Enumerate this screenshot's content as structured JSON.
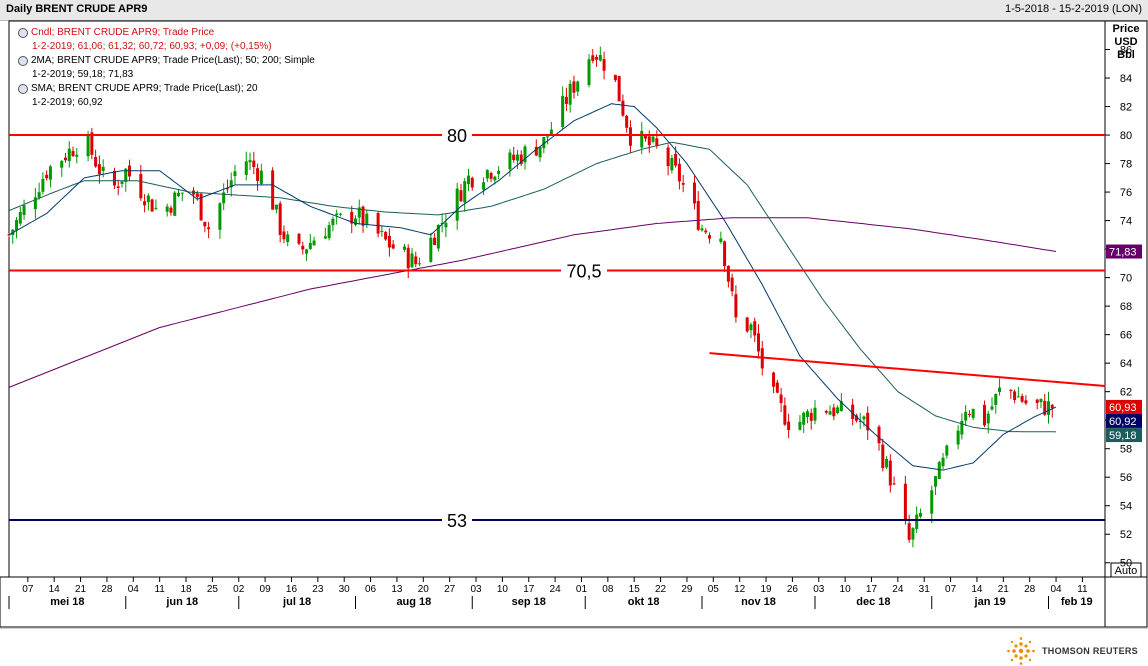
{
  "header": {
    "title": "Daily BRENT CRUDE APR9",
    "date_range": "1-5-2018 - 15-2-2019 (LON)"
  },
  "legend": [
    {
      "label": "Cndl; BRENT CRUDE APR9; Trade Price",
      "values": "1-2-2019; 61,06; 61,32; 60,72; 60,93; +0,09; (+0,15%)",
      "color": "#d01010"
    },
    {
      "label": "2MA; BRENT CRUDE APR9; Trade Price(Last);  50; 200; Simple",
      "values": "1-2-2019; 59,18; 71,83",
      "color": "#000000"
    },
    {
      "label": "SMA; BRENT CRUDE APR9; Trade Price(Last);  20",
      "values": "1-2-2019; 60,92",
      "color": "#000000"
    }
  ],
  "axis_title": [
    "Price",
    "USD",
    "Bbl"
  ],
  "auto_label": "Auto",
  "branding": "THOMSON REUTERS",
  "colors": {
    "up": "#009900",
    "down": "#dd0000",
    "hline_red": "#ff0000",
    "hline_blue": "#00005a",
    "ma20": "#003a6b",
    "ma50": "#1b5c5c",
    "ma200": "#660066"
  },
  "chart_data": {
    "type": "candlestick",
    "ylim": [
      49,
      88
    ],
    "yticks": [
      50,
      52,
      54,
      56,
      58,
      60,
      62,
      64,
      66,
      68,
      70,
      72,
      74,
      76,
      78,
      80,
      82,
      84,
      86
    ],
    "x_day_ticks": [
      {
        "d": 5,
        "label": "07"
      },
      {
        "d": 12,
        "label": "14"
      },
      {
        "d": 19,
        "label": "21"
      },
      {
        "d": 26,
        "label": "28"
      },
      {
        "d": 33,
        "label": "04"
      },
      {
        "d": 40,
        "label": "11"
      },
      {
        "d": 47,
        "label": "18"
      },
      {
        "d": 54,
        "label": "25"
      },
      {
        "d": 61,
        "label": "02"
      },
      {
        "d": 68,
        "label": "09"
      },
      {
        "d": 75,
        "label": "16"
      },
      {
        "d": 82,
        "label": "23"
      },
      {
        "d": 89,
        "label": "30"
      },
      {
        "d": 96,
        "label": "06"
      },
      {
        "d": 103,
        "label": "13"
      },
      {
        "d": 110,
        "label": "20"
      },
      {
        "d": 117,
        "label": "27"
      },
      {
        "d": 124,
        "label": "03"
      },
      {
        "d": 131,
        "label": "10"
      },
      {
        "d": 138,
        "label": "17"
      },
      {
        "d": 145,
        "label": "24"
      },
      {
        "d": 152,
        "label": "01"
      },
      {
        "d": 159,
        "label": "08"
      },
      {
        "d": 166,
        "label": "15"
      },
      {
        "d": 173,
        "label": "22"
      },
      {
        "d": 180,
        "label": "29"
      },
      {
        "d": 187,
        "label": "05"
      },
      {
        "d": 194,
        "label": "12"
      },
      {
        "d": 201,
        "label": "19"
      },
      {
        "d": 208,
        "label": "26"
      },
      {
        "d": 215,
        "label": "03"
      },
      {
        "d": 222,
        "label": "10"
      },
      {
        "d": 229,
        "label": "17"
      },
      {
        "d": 236,
        "label": "24"
      },
      {
        "d": 243,
        "label": "31"
      },
      {
        "d": 250,
        "label": "07"
      },
      {
        "d": 257,
        "label": "14"
      },
      {
        "d": 264,
        "label": "21"
      },
      {
        "d": 271,
        "label": "28"
      },
      {
        "d": 278,
        "label": "04"
      },
      {
        "d": 285,
        "label": "11"
      }
    ],
    "x_month_ticks": [
      {
        "d": 0,
        "end": 31,
        "label": "mei 18"
      },
      {
        "d": 31,
        "end": 61,
        "label": "jun 18"
      },
      {
        "d": 61,
        "end": 92,
        "label": "jul 18"
      },
      {
        "d": 92,
        "end": 123,
        "label": "aug 18"
      },
      {
        "d": 123,
        "end": 153,
        "label": "sep 18"
      },
      {
        "d": 153,
        "end": 184,
        "label": "okt 18"
      },
      {
        "d": 184,
        "end": 214,
        "label": "nov 18"
      },
      {
        "d": 214,
        "end": 245,
        "label": "dec 18"
      },
      {
        "d": 245,
        "end": 276,
        "label": "jan 19"
      },
      {
        "d": 276,
        "end": 291,
        "label": "feb 19"
      }
    ],
    "x_domain_days": [
      0,
      291
    ],
    "close_waypoints": [
      {
        "d": 0,
        "p": 73.0
      },
      {
        "d": 10,
        "p": 77.5
      },
      {
        "d": 20,
        "p": 79.8
      },
      {
        "d": 27,
        "p": 76.0
      },
      {
        "d": 31,
        "p": 77.5
      },
      {
        "d": 40,
        "p": 74.5
      },
      {
        "d": 48,
        "p": 76.5
      },
      {
        "d": 53,
        "p": 73.5
      },
      {
        "d": 62,
        "p": 78.5
      },
      {
        "d": 68,
        "p": 77.0
      },
      {
        "d": 72,
        "p": 73.5
      },
      {
        "d": 76,
        "p": 71.5
      },
      {
        "d": 84,
        "p": 73.5
      },
      {
        "d": 92,
        "p": 74.5
      },
      {
        "d": 100,
        "p": 72.5
      },
      {
        "d": 108,
        "p": 71.0
      },
      {
        "d": 114,
        "p": 73.5
      },
      {
        "d": 122,
        "p": 77.0
      },
      {
        "d": 132,
        "p": 78.0
      },
      {
        "d": 142,
        "p": 79.5
      },
      {
        "d": 149,
        "p": 83.0
      },
      {
        "d": 155,
        "p": 86.0
      },
      {
        "d": 160,
        "p": 84.5
      },
      {
        "d": 165,
        "p": 80.0
      },
      {
        "d": 172,
        "p": 79.0
      },
      {
        "d": 178,
        "p": 77.0
      },
      {
        "d": 184,
        "p": 73.5
      },
      {
        "d": 189,
        "p": 73.0
      },
      {
        "d": 193,
        "p": 67.0
      },
      {
        "d": 197,
        "p": 66.5
      },
      {
        "d": 202,
        "p": 62.0
      },
      {
        "d": 208,
        "p": 59.5
      },
      {
        "d": 215,
        "p": 61.0
      },
      {
        "d": 222,
        "p": 60.5
      },
      {
        "d": 229,
        "p": 59.5
      },
      {
        "d": 234,
        "p": 56.0
      },
      {
        "d": 239,
        "p": 51.5
      },
      {
        "d": 244,
        "p": 54.5
      },
      {
        "d": 249,
        "p": 57.5
      },
      {
        "d": 254,
        "p": 61.0
      },
      {
        "d": 259,
        "p": 60.0
      },
      {
        "d": 264,
        "p": 62.5
      },
      {
        "d": 271,
        "p": 61.0
      },
      {
        "d": 278,
        "p": 60.93
      }
    ],
    "ma50_waypoints": [
      {
        "d": 0,
        "p": 74.7
      },
      {
        "d": 12,
        "p": 76.0
      },
      {
        "d": 20,
        "p": 76.8
      },
      {
        "d": 34,
        "p": 76.8
      },
      {
        "d": 48,
        "p": 76.0
      },
      {
        "d": 60,
        "p": 75.8
      },
      {
        "d": 72,
        "p": 75.6
      },
      {
        "d": 86,
        "p": 75.0
      },
      {
        "d": 100,
        "p": 74.6
      },
      {
        "d": 114,
        "p": 74.4
      },
      {
        "d": 128,
        "p": 75.0
      },
      {
        "d": 142,
        "p": 76.2
      },
      {
        "d": 156,
        "p": 78.0
      },
      {
        "d": 168,
        "p": 79.0
      },
      {
        "d": 176,
        "p": 79.5
      },
      {
        "d": 186,
        "p": 79.0
      },
      {
        "d": 196,
        "p": 76.5
      },
      {
        "d": 206,
        "p": 72.5
      },
      {
        "d": 216,
        "p": 68.5
      },
      {
        "d": 226,
        "p": 65.0
      },
      {
        "d": 236,
        "p": 62.0
      },
      {
        "d": 246,
        "p": 60.3
      },
      {
        "d": 256,
        "p": 59.5
      },
      {
        "d": 266,
        "p": 59.2
      },
      {
        "d": 278,
        "p": 59.18
      }
    ],
    "ma200_waypoints": [
      {
        "d": 0,
        "p": 62.3
      },
      {
        "d": 40,
        "p": 66.5
      },
      {
        "d": 80,
        "p": 69.2
      },
      {
        "d": 120,
        "p": 71.2
      },
      {
        "d": 150,
        "p": 73.0
      },
      {
        "d": 172,
        "p": 73.8
      },
      {
        "d": 192,
        "p": 74.2
      },
      {
        "d": 212,
        "p": 74.2
      },
      {
        "d": 240,
        "p": 73.4
      },
      {
        "d": 260,
        "p": 72.6
      },
      {
        "d": 278,
        "p": 71.83
      }
    ],
    "ma20_waypoints": [
      {
        "d": 0,
        "p": 73.0
      },
      {
        "d": 10,
        "p": 74.5
      },
      {
        "d": 20,
        "p": 77.0
      },
      {
        "d": 30,
        "p": 77.5
      },
      {
        "d": 40,
        "p": 77.5
      },
      {
        "d": 50,
        "p": 75.5
      },
      {
        "d": 60,
        "p": 76.5
      },
      {
        "d": 70,
        "p": 76.5
      },
      {
        "d": 80,
        "p": 75.0
      },
      {
        "d": 92,
        "p": 73.8
      },
      {
        "d": 104,
        "p": 73.5
      },
      {
        "d": 112,
        "p": 73.0
      },
      {
        "d": 120,
        "p": 75.0
      },
      {
        "d": 130,
        "p": 76.8
      },
      {
        "d": 140,
        "p": 79.0
      },
      {
        "d": 150,
        "p": 81.0
      },
      {
        "d": 160,
        "p": 82.2
      },
      {
        "d": 166,
        "p": 82.0
      },
      {
        "d": 172,
        "p": 80.5
      },
      {
        "d": 180,
        "p": 78.0
      },
      {
        "d": 190,
        "p": 74.0
      },
      {
        "d": 200,
        "p": 69.5
      },
      {
        "d": 210,
        "p": 64.5
      },
      {
        "d": 220,
        "p": 61.5
      },
      {
        "d": 230,
        "p": 59.0
      },
      {
        "d": 240,
        "p": 56.8
      },
      {
        "d": 248,
        "p": 56.5
      },
      {
        "d": 256,
        "p": 57.0
      },
      {
        "d": 264,
        "p": 59.0
      },
      {
        "d": 272,
        "p": 60.2
      },
      {
        "d": 278,
        "p": 60.92
      }
    ],
    "horizontal_lines": [
      {
        "price": 80,
        "label": "80",
        "color": "#ff0000"
      },
      {
        "price": 70.5,
        "label": "70,5",
        "color": "#ff0000"
      },
      {
        "price": 53,
        "label": "53",
        "color": "#00005a"
      }
    ],
    "trendline": {
      "d1": 186,
      "p1": 64.7,
      "d2": 291,
      "p2": 62.4,
      "color": "#ff0000"
    },
    "price_tags": [
      {
        "price": 71.83,
        "label": "71,83",
        "color": "#660066"
      },
      {
        "price": 60.93,
        "label": "60,93",
        "color": "#dd0000"
      },
      {
        "price": 60.92,
        "label": "60,92",
        "color": "#000066"
      },
      {
        "price": 59.18,
        "label": "59,18",
        "color": "#1b5c5c"
      }
    ]
  }
}
